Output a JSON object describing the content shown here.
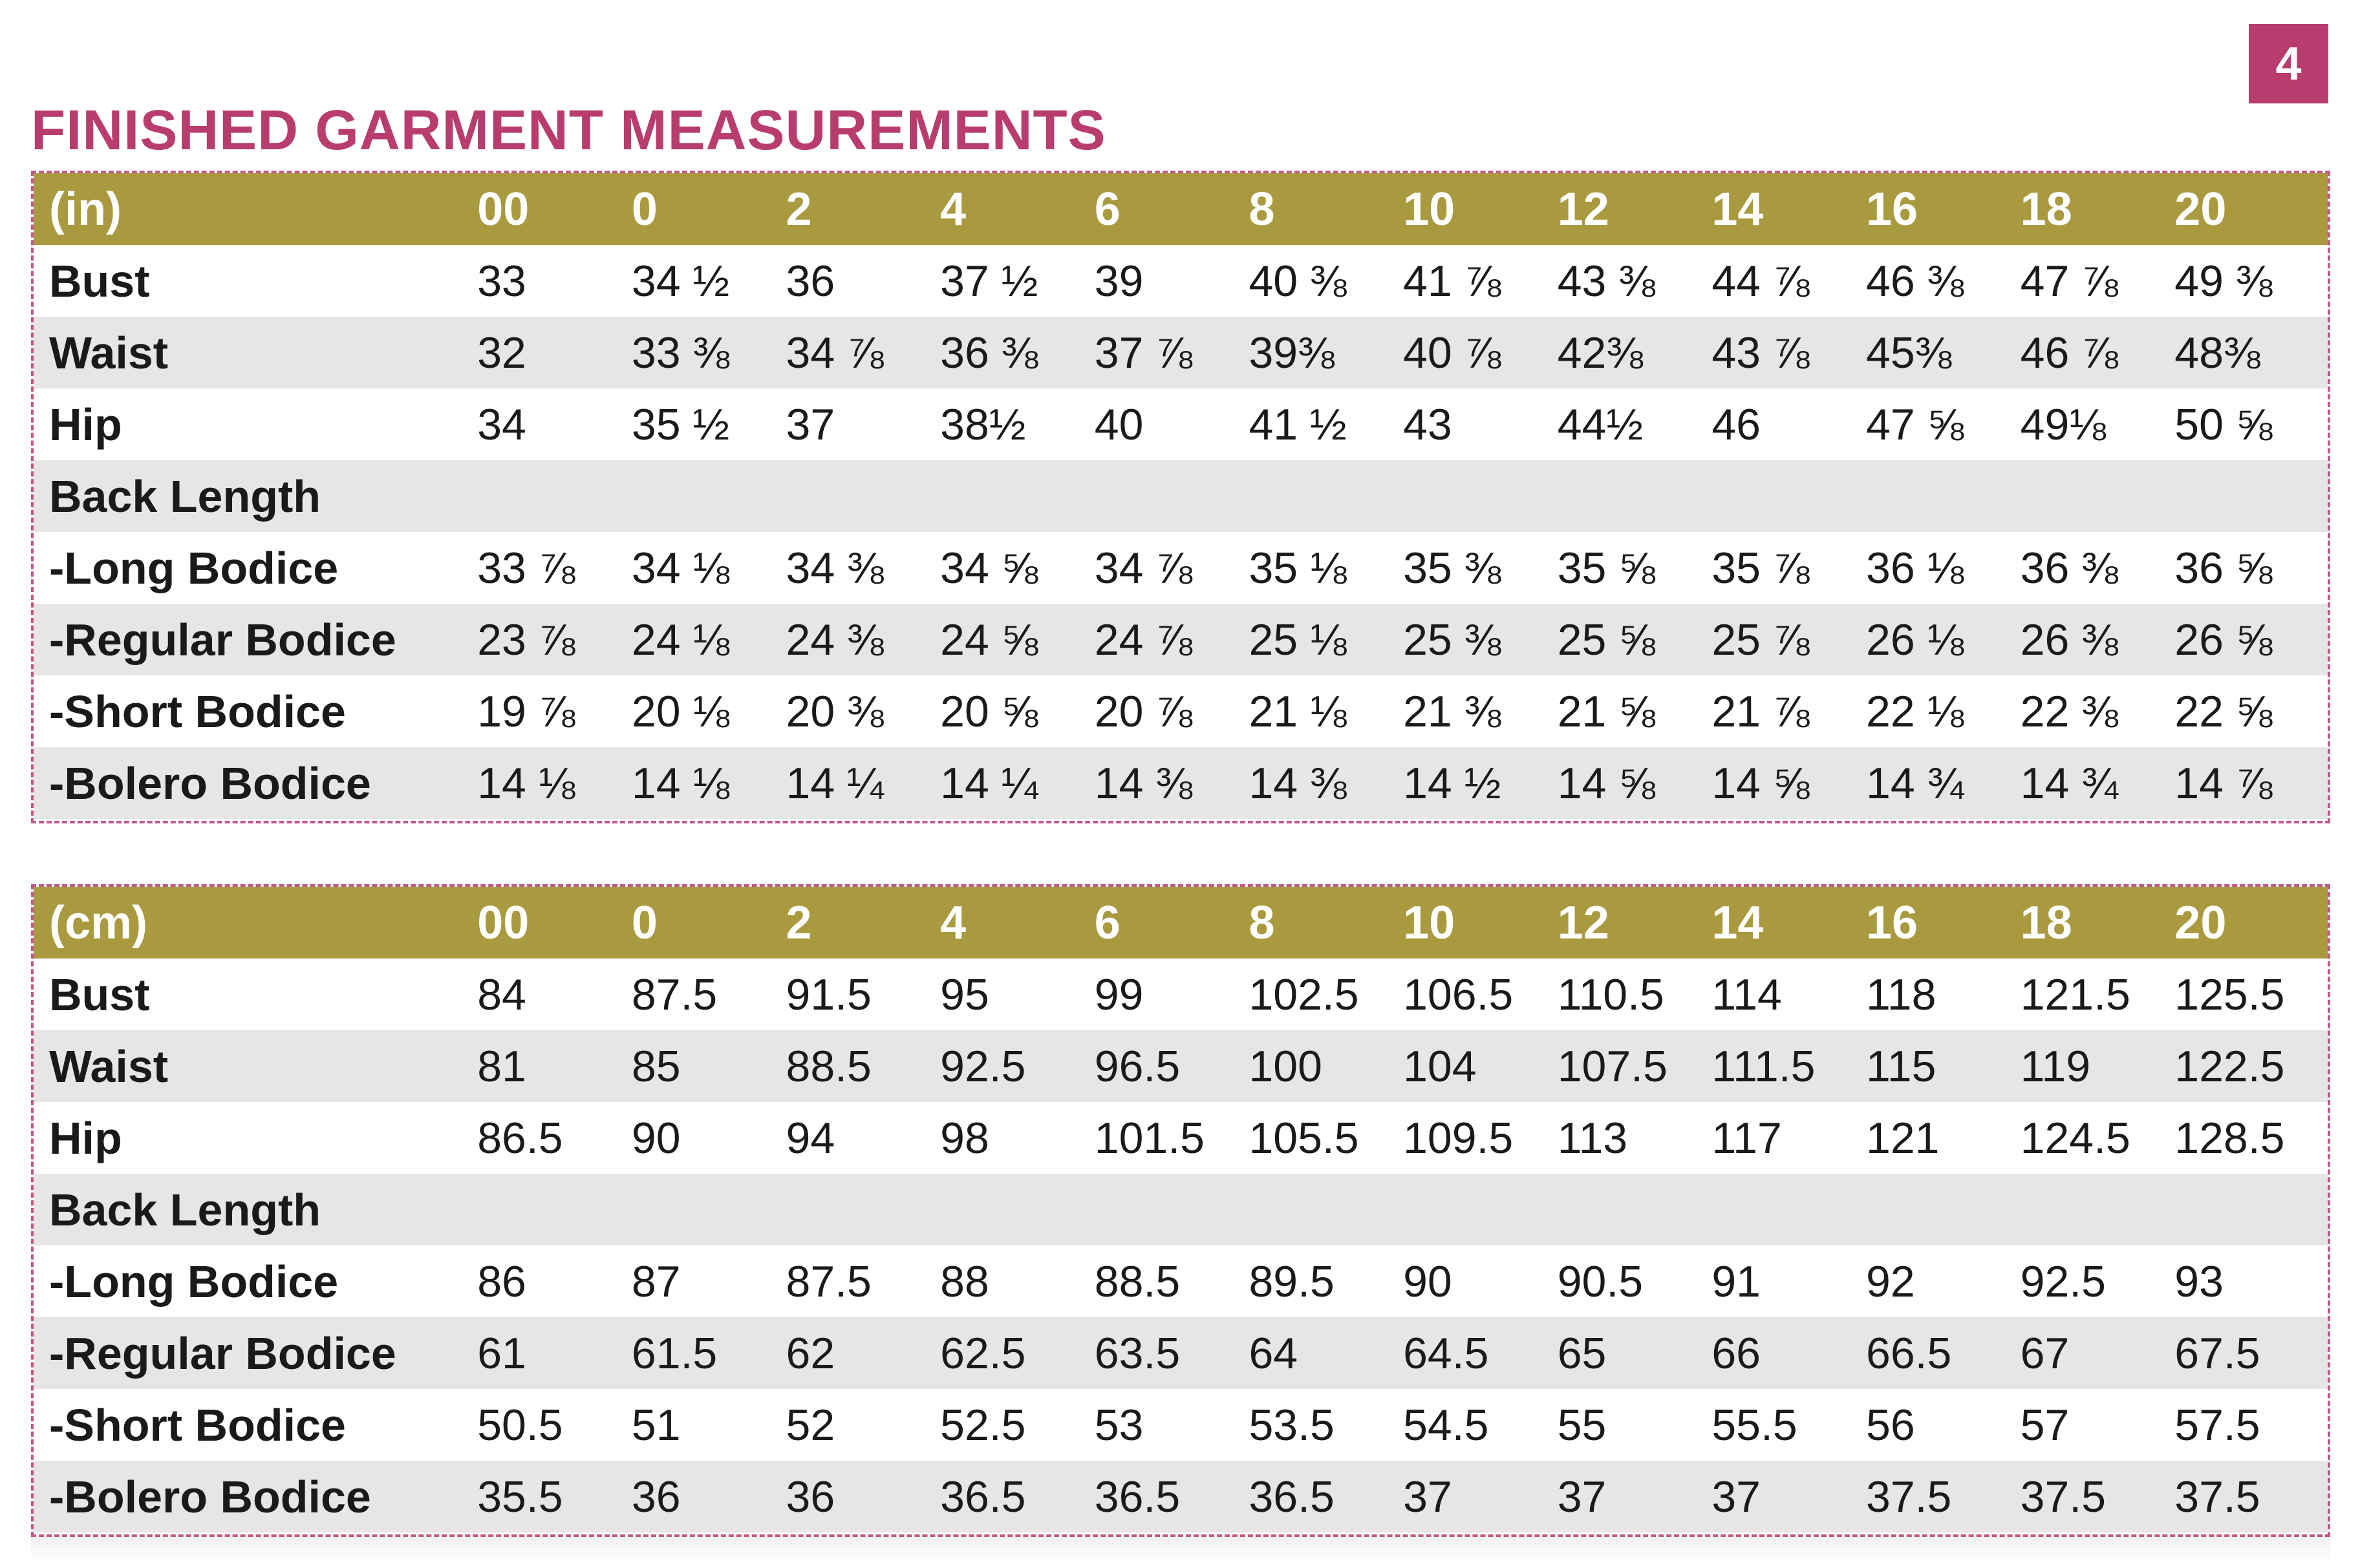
{
  "page_number": "4",
  "title": "FINISHED GARMENT MEASUREMENTS",
  "colors": {
    "accent": "#b83c6d",
    "header_band": "#a99a3f",
    "row_shade": "#e6e6e6"
  },
  "tables": [
    {
      "unit_label": "(in)",
      "sizes": [
        "00",
        "0",
        "2",
        "4",
        "6",
        "8",
        "10",
        "12",
        "14",
        "16",
        "18",
        "20"
      ],
      "rows": [
        {
          "label": "Bust",
          "values": [
            "33",
            "34 ½",
            "36",
            "37 ½",
            "39",
            "40 ⅜",
            "41 ⅞",
            "43 ⅜",
            "44 ⅞",
            "46 ⅜",
            "47 ⅞",
            "49 ⅜"
          ]
        },
        {
          "label": "Waist",
          "values": [
            "32",
            "33 ⅜",
            "34 ⅞",
            "36 ⅜",
            "37 ⅞",
            "39⅜",
            "40 ⅞",
            "42⅜",
            "43 ⅞",
            "45⅜",
            "46 ⅞",
            "48⅜"
          ]
        },
        {
          "label": "Hip",
          "values": [
            "34",
            "35 ½",
            "37",
            "38½",
            "40",
            "41 ½",
            "43",
            "44½",
            "46",
            "47 ⅝",
            "49⅛",
            "50 ⅝"
          ]
        },
        {
          "label": "Back Length",
          "values": [
            "",
            "",
            "",
            "",
            "",
            "",
            "",
            "",
            "",
            "",
            "",
            ""
          ]
        },
        {
          "label": " -Long Bodice",
          "values": [
            "33 ⅞",
            "34 ⅛",
            "34 ⅜",
            "34 ⅝",
            "34 ⅞",
            "35 ⅛",
            "35 ⅜",
            "35 ⅝",
            "35 ⅞",
            "36 ⅛",
            "36 ⅜",
            "36 ⅝"
          ]
        },
        {
          "label": " -Regular Bodice",
          "values": [
            "23 ⅞",
            "24 ⅛",
            "24 ⅜",
            "24 ⅝",
            "24 ⅞",
            "25 ⅛",
            "25 ⅜",
            "25 ⅝",
            "25 ⅞",
            "26 ⅛",
            "26 ⅜",
            "26 ⅝"
          ]
        },
        {
          "label": " -Short Bodice",
          "values": [
            "19 ⅞",
            "20 ⅛",
            "20 ⅜",
            "20 ⅝",
            "20 ⅞",
            "21 ⅛",
            "21 ⅜",
            "21 ⅝",
            "21 ⅞",
            "22 ⅛",
            "22 ⅜",
            "22 ⅝"
          ]
        },
        {
          "label": " -Bolero Bodice",
          "values": [
            "14 ⅛",
            "14 ⅛",
            "14 ¼",
            "14 ¼",
            "14 ⅜",
            "14 ⅜",
            "14 ½",
            "14 ⅝",
            "14 ⅝",
            "14 ¾",
            "14 ¾",
            "14 ⅞"
          ]
        }
      ]
    },
    {
      "unit_label": "(cm)",
      "sizes": [
        "00",
        "0",
        "2",
        "4",
        "6",
        "8",
        "10",
        "12",
        "14",
        "16",
        "18",
        "20"
      ],
      "rows": [
        {
          "label": "Bust",
          "values": [
            "84",
            "87.5",
            "91.5",
            "95",
            "99",
            "102.5",
            "106.5",
            "110.5",
            "114",
            "118",
            "121.5",
            "125.5"
          ]
        },
        {
          "label": "Waist",
          "values": [
            "81",
            "85",
            "88.5",
            "92.5",
            "96.5",
            "100",
            "104",
            "107.5",
            "111.5",
            "115",
            "119",
            "122.5"
          ]
        },
        {
          "label": "Hip",
          "values": [
            "86.5",
            "90",
            "94",
            "98",
            "101.5",
            "105.5",
            "109.5",
            "113",
            "117",
            "121",
            "124.5",
            "128.5"
          ]
        },
        {
          "label": "Back Length",
          "values": [
            "",
            "",
            "",
            "",
            "",
            "",
            "",
            "",
            "",
            "",
            "",
            ""
          ]
        },
        {
          "label": " -Long Bodice",
          "values": [
            "86",
            "87",
            "87.5",
            "88",
            "88.5",
            "89.5",
            "90",
            "90.5",
            "91",
            "92",
            "92.5",
            "93"
          ]
        },
        {
          "label": " -Regular Bodice",
          "values": [
            "61",
            "61.5",
            "62",
            "62.5",
            "63.5",
            "64",
            "64.5",
            "65",
            "66",
            "66.5",
            "67",
            "67.5"
          ]
        },
        {
          "label": " -Short Bodice",
          "values": [
            "50.5",
            "51",
            "52",
            "52.5",
            "53",
            "53.5",
            "54.5",
            "55",
            "55.5",
            "56",
            "57",
            "57.5"
          ]
        },
        {
          "label": " -Bolero Bodice",
          "values": [
            "35.5",
            "36",
            "36",
            "36.5",
            "36.5",
            "36.5",
            "37",
            "37",
            "37",
            "37.5",
            "37.5",
            "37.5"
          ]
        }
      ]
    }
  ]
}
